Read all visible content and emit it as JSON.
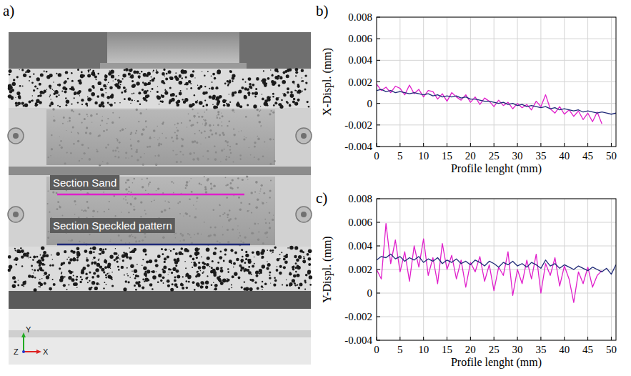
{
  "photo": {
    "label": "a)",
    "sections": [
      {
        "label": "Section Sand",
        "color": "#e01fcb"
      },
      {
        "label": "Section Speckled pattern",
        "color": "#1f2a78"
      }
    ],
    "axes": {
      "x": "X",
      "y": "Y",
      "z": "Z"
    }
  },
  "chart_data": [
    {
      "type": "line",
      "label": "b)",
      "x_label": "Profile lenght (mm)",
      "y_label": "X-Displ. (mm)",
      "xlim": [
        0,
        51
      ],
      "xticks": [
        0,
        5,
        10,
        15,
        20,
        25,
        30,
        35,
        40,
        45,
        50
      ],
      "ylim": [
        -0.004,
        0.008
      ],
      "yticks": [
        -0.004,
        -0.002,
        0,
        0.002,
        0.004,
        0.006,
        0.008
      ],
      "grid": true,
      "series": [
        {
          "color": "#e01fcb",
          "x": [
            0,
            1,
            2,
            3,
            4,
            5,
            6,
            7,
            8,
            9,
            10,
            11,
            12,
            13,
            14,
            15,
            16,
            17,
            18,
            19,
            20,
            21,
            22,
            23,
            24,
            25,
            26,
            27,
            28,
            29,
            30,
            31,
            32,
            33,
            34,
            35,
            36,
            37,
            38,
            39,
            40,
            41,
            42,
            43,
            44,
            45,
            46,
            47,
            48
          ],
          "values": [
            0.0018,
            0.0012,
            0.0015,
            0.001,
            0.0016,
            0.0014,
            0.0008,
            0.0017,
            0.0009,
            0.0013,
            0.0006,
            0.0012,
            0.0011,
            0.0004,
            0.0009,
            0.0002,
            0.001,
            0.0006,
            0.0003,
            0.0008,
            0.0001,
            0.0006,
            -0.0001,
            0.0005,
            0.0002,
            -0.0003,
            0.0003,
            -0.0002,
            0.0001,
            -0.0005,
            0.0,
            -0.0004,
            -0.0001,
            -0.0006,
            0.0002,
            -0.0003,
            0.0008,
            -0.0005,
            -0.0009,
            -0.0003,
            -0.001,
            -0.0006,
            -0.0012,
            -0.0007,
            -0.0015,
            -0.0009,
            -0.0017,
            -0.0008,
            -0.0019
          ]
        },
        {
          "color": "#1f2a78",
          "x": [
            0,
            1,
            2,
            3,
            4,
            5,
            6,
            7,
            8,
            9,
            10,
            11,
            12,
            13,
            14,
            15,
            16,
            17,
            18,
            19,
            20,
            21,
            22,
            23,
            24,
            25,
            26,
            27,
            28,
            29,
            30,
            31,
            32,
            33,
            34,
            35,
            36,
            37,
            38,
            39,
            40,
            41,
            42,
            43,
            44,
            45,
            46,
            47,
            48,
            49,
            50,
            51
          ],
          "values": [
            0.0012,
            0.0013,
            0.0011,
            0.0012,
            0.001,
            0.0011,
            0.001,
            0.0009,
            0.001,
            0.0009,
            0.0008,
            0.0009,
            0.0007,
            0.0008,
            0.0006,
            0.0007,
            0.0006,
            0.0007,
            0.0005,
            0.0006,
            0.0004,
            0.0004,
            0.0003,
            0.0002,
            0.0002,
            0.0001,
            0.0,
            0.0001,
            -0.0001,
            0.0,
            -0.0002,
            -0.0001,
            -0.0003,
            -0.0002,
            -0.0003,
            -0.0004,
            -0.0003,
            -0.0005,
            -0.0004,
            -0.0006,
            -0.0005,
            -0.0006,
            -0.0007,
            -0.0006,
            -0.0008,
            -0.0007,
            -0.0008,
            -0.0009,
            -0.0008,
            -0.0009,
            -0.001,
            -0.0009
          ]
        }
      ]
    },
    {
      "type": "line",
      "label": "c)",
      "x_label": "Profile lenght (mm)",
      "y_label": "Y-Displ. (mm)",
      "xlim": [
        0,
        51
      ],
      "xticks": [
        0,
        5,
        10,
        15,
        20,
        25,
        30,
        35,
        40,
        45,
        50
      ],
      "ylim": [
        -0.004,
        0.008
      ],
      "yticks": [
        -0.004,
        -0.002,
        0,
        0.002,
        0.004,
        0.006,
        0.008
      ],
      "grid": true,
      "series": [
        {
          "color": "#e01fcb",
          "x": [
            0,
            1,
            2,
            3,
            4,
            5,
            6,
            7,
            8,
            9,
            10,
            11,
            12,
            13,
            14,
            15,
            16,
            17,
            18,
            19,
            20,
            21,
            22,
            23,
            24,
            25,
            26,
            27,
            28,
            29,
            30,
            31,
            32,
            33,
            34,
            35,
            36,
            37,
            38,
            39,
            40,
            41,
            42,
            43,
            44,
            45,
            46,
            47,
            48
          ],
          "values": [
            0.002,
            0.0012,
            0.0059,
            0.0025,
            0.0045,
            0.0018,
            0.0035,
            0.001,
            0.004,
            0.0022,
            0.0046,
            0.0015,
            0.003,
            0.0008,
            0.0042,
            0.002,
            0.0032,
            0.0012,
            0.0028,
            0.0005,
            0.0026,
            0.0018,
            0.0031,
            0.001,
            0.0024,
            0.0002,
            0.0022,
            0.0015,
            0.0035,
            -0.0002,
            0.002,
            0.0008,
            0.0028,
            0.0012,
            0.0033,
            0.0,
            0.0025,
            0.0015,
            0.003,
            0.0006,
            0.0023,
            0.0012,
            -0.0008,
            0.0018,
            0.0008,
            0.0022,
            0.0005,
            0.0015,
            0.0019
          ]
        },
        {
          "color": "#1f2a78",
          "x": [
            0,
            1,
            2,
            3,
            4,
            5,
            6,
            7,
            8,
            9,
            10,
            11,
            12,
            13,
            14,
            15,
            16,
            17,
            18,
            19,
            20,
            21,
            22,
            23,
            24,
            25,
            26,
            27,
            28,
            29,
            30,
            31,
            32,
            33,
            34,
            35,
            36,
            37,
            38,
            39,
            40,
            41,
            42,
            43,
            44,
            45,
            46,
            47,
            48,
            49,
            50,
            51
          ],
          "values": [
            0.0028,
            0.0031,
            0.003,
            0.0033,
            0.0029,
            0.0031,
            0.0027,
            0.003,
            0.0028,
            0.0031,
            0.0026,
            0.0029,
            0.0027,
            0.003,
            0.0025,
            0.0028,
            0.0026,
            0.0029,
            0.0025,
            0.0027,
            0.0024,
            0.0028,
            0.0026,
            0.0023,
            0.0027,
            0.0025,
            0.0022,
            0.0026,
            0.0024,
            0.0027,
            0.0023,
            0.0025,
            0.0022,
            0.0026,
            0.0024,
            0.0021,
            0.0028,
            0.0023,
            0.0025,
            0.0021,
            0.0024,
            0.0022,
            0.002,
            0.0023,
            0.0021,
            0.0019,
            0.0022,
            0.002,
            0.0018,
            0.0021,
            0.0016,
            0.0024
          ]
        }
      ]
    }
  ]
}
